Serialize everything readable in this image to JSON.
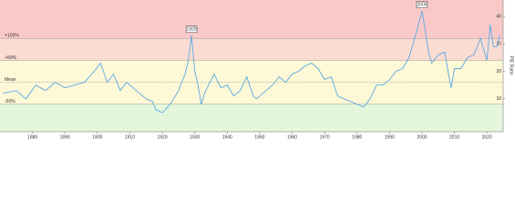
{
  "chart_data": {
    "type": "line",
    "y_axis_label": "P/E Ratio",
    "x": [
      1871,
      1875,
      1878,
      1881,
      1884,
      1887,
      1890,
      1893,
      1896,
      1899,
      1901,
      1903,
      1905,
      1907,
      1909,
      1911,
      1913,
      1915,
      1917,
      1918,
      1920,
      1921,
      1923,
      1925,
      1927,
      1928,
      1929,
      1930,
      1931,
      1932,
      1933,
      1936,
      1938,
      1940,
      1942,
      1944,
      1946,
      1948,
      1949,
      1950,
      1952,
      1954,
      1956,
      1958,
      1960,
      1962,
      1964,
      1966,
      1968,
      1970,
      1972,
      1974,
      1976,
      1978,
      1980,
      1982,
      1984,
      1986,
      1988,
      1990,
      1992,
      1994,
      1996,
      1998,
      2000,
      2001,
      2002,
      2003,
      2005,
      2007,
      2008,
      2009,
      2010,
      2012,
      2014,
      2016,
      2018,
      2019,
      2020,
      2021,
      2022,
      2023,
      2024
    ],
    "series": [
      {
        "name": "P/E Ratio",
        "color": "#5aa9e6",
        "values": [
          12,
          13,
          10,
          15,
          13,
          16,
          14,
          15,
          16,
          20,
          23,
          16,
          19,
          13,
          16,
          14,
          12,
          10,
          9,
          6,
          5,
          6,
          9,
          13,
          19,
          24,
          33,
          20,
          15,
          8,
          12,
          19,
          14,
          15,
          11,
          13,
          18,
          11,
          10,
          11,
          13,
          15,
          18,
          16,
          19,
          20,
          22,
          23,
          21,
          17,
          18,
          11,
          10,
          9,
          8,
          7,
          10,
          15,
          15,
          17,
          20,
          21,
          25,
          33,
          42,
          35,
          27,
          23,
          26,
          27,
          20,
          14,
          21,
          21,
          25,
          26,
          32,
          28,
          24,
          37,
          29,
          29,
          33
        ]
      }
    ],
    "xlim": [
      1870,
      2025
    ],
    "ylim": [
      -2,
      46
    ],
    "xticks": [
      1880,
      1890,
      1900,
      1910,
      1920,
      1930,
      1940,
      1950,
      1960,
      1970,
      1980,
      1990,
      2000,
      2010,
      2020
    ],
    "yticks": [
      10,
      20,
      30,
      40
    ],
    "bands": [
      {
        "from": 32,
        "to": 46,
        "color": "#f9c9c9"
      },
      {
        "from": 24,
        "to": 32,
        "color": "#fbdcd2"
      },
      {
        "from": 8,
        "to": 24,
        "color": "#fdf8d6"
      },
      {
        "from": -2,
        "to": 8,
        "color": "#e4f7dc"
      }
    ],
    "reference_lines": [
      {
        "value": 32,
        "label": "+100%"
      },
      {
        "value": 24,
        "label": "+50%"
      },
      {
        "value": 16,
        "label": "Mean"
      },
      {
        "value": 8,
        "label": "-50%"
      }
    ],
    "annotations": [
      {
        "x": 1929,
        "y": 33,
        "label": "1929"
      },
      {
        "x": 2000,
        "y": 42,
        "label": "2000"
      }
    ]
  }
}
